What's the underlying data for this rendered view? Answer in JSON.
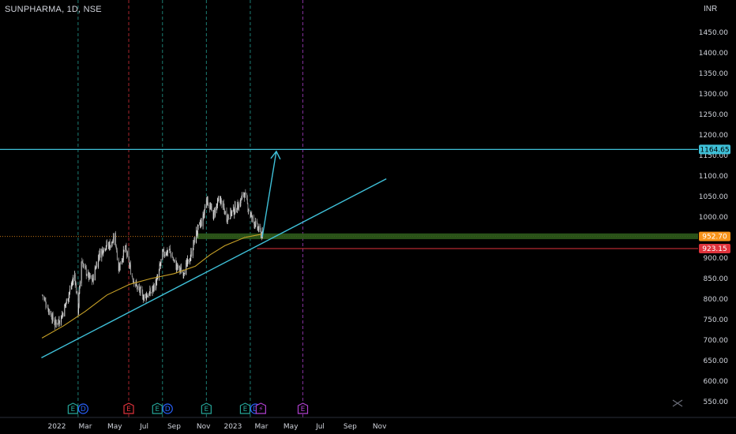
{
  "header": {
    "symbol": "SUNPHARMA, 1D, NSE",
    "currency": "INR"
  },
  "colors": {
    "background": "#000000",
    "up_candle": "#d9d9d9",
    "down_candle": "#9a9a9a",
    "moving_average": "#c9a227",
    "trendline": "#3fc1d9",
    "target_line": "#3fc1d9",
    "support_zone": "#2d5a1b",
    "stop_line": "#e0333c",
    "price_tag_current": "#f7931a",
    "price_tag_stop": "#e0333c",
    "price_tag_target": "#3fc1d9",
    "event_earnings": "#26a69a",
    "event_dividend": "#2962ff",
    "event_earnings_red": "#e0333c",
    "event_future": "#b040d0",
    "dotted_ref": "#f7931a"
  },
  "chart_data": {
    "type": "candlestick",
    "title": "SUNPHARMA, 1D, NSE",
    "ylabel": "INR",
    "ylim": [
      535,
      1475
    ],
    "y_ticks": [
      "1450.00",
      "1400.00",
      "1350.00",
      "1300.00",
      "1250.00",
      "1200.00",
      "1150.00",
      "1100.00",
      "1050.00",
      "1000.00",
      "950.00",
      "900.00",
      "850.00",
      "800.00",
      "750.00",
      "700.00",
      "650.00",
      "600.00",
      "550.00"
    ],
    "x_ticks": [
      "2022",
      "Mar",
      "May",
      "Jul",
      "Sep",
      "Nov",
      "2023",
      "Mar",
      "May",
      "Jul",
      "Sep",
      "Nov"
    ],
    "price_path": [
      [
        "2021-12-02",
        810
      ],
      [
        "2021-12-15",
        775
      ],
      [
        "2021-12-28",
        740
      ],
      [
        "2022-01-10",
        755
      ],
      [
        "2022-01-24",
        805
      ],
      [
        "2022-02-07",
        860
      ],
      [
        "2022-02-14",
        770
      ],
      [
        "2022-02-21",
        895
      ],
      [
        "2022-03-07",
        855
      ],
      [
        "2022-03-16",
        845
      ],
      [
        "2022-03-28",
        905
      ],
      [
        "2022-04-11",
        930
      ],
      [
        "2022-04-25",
        935
      ],
      [
        "2022-05-02",
        950
      ],
      [
        "2022-05-09",
        875
      ],
      [
        "2022-05-23",
        925
      ],
      [
        "2022-06-06",
        855
      ],
      [
        "2022-06-16",
        830
      ],
      [
        "2022-06-30",
        805
      ],
      [
        "2022-07-14",
        815
      ],
      [
        "2022-07-28",
        845
      ],
      [
        "2022-08-08",
        910
      ],
      [
        "2022-08-22",
        920
      ],
      [
        "2022-09-05",
        880
      ],
      [
        "2022-09-19",
        865
      ],
      [
        "2022-10-03",
        895
      ],
      [
        "2022-10-17",
        960
      ],
      [
        "2022-10-31",
        995
      ],
      [
        "2022-11-07",
        1045
      ],
      [
        "2022-11-21",
        1005
      ],
      [
        "2022-12-05",
        1045
      ],
      [
        "2022-12-19",
        1000
      ],
      [
        "2023-01-02",
        1015
      ],
      [
        "2023-01-16",
        1035
      ],
      [
        "2023-01-24",
        1060
      ],
      [
        "2023-02-06",
        1005
      ],
      [
        "2023-02-20",
        975
      ],
      [
        "2023-03-03",
        955
      ]
    ],
    "moving_average_path": [
      [
        "2021-12-01",
        705
      ],
      [
        "2022-01-15",
        735
      ],
      [
        "2022-03-01",
        770
      ],
      [
        "2022-04-15",
        810
      ],
      [
        "2022-06-01",
        836
      ],
      [
        "2022-07-15",
        850
      ],
      [
        "2022-09-01",
        862
      ],
      [
        "2022-10-15",
        880
      ],
      [
        "2022-11-15",
        908
      ],
      [
        "2022-12-15",
        930
      ],
      [
        "2023-01-25",
        950
      ],
      [
        "2023-03-01",
        958
      ]
    ],
    "trendline": {
      "from": [
        "2021-11-30",
        657
      ],
      "to": [
        "2023-11-15",
        1093
      ]
    },
    "projection_arrow": {
      "from": [
        "2023-03-03",
        952
      ],
      "to": [
        "2023-04-01",
        1160
      ]
    },
    "levels": {
      "target": {
        "value": 1164.65,
        "label": "1164.65"
      },
      "current": {
        "value": 952.7,
        "label": "952.70"
      },
      "stop": {
        "value": 923.15,
        "label": "923.15"
      }
    },
    "event_lines": [
      {
        "date": "2022-02-14",
        "color": "#26a69a"
      },
      {
        "date": "2022-05-30",
        "color": "#e0333c"
      },
      {
        "date": "2022-08-08",
        "color": "#26a69a"
      },
      {
        "date": "2022-11-07",
        "color": "#26a69a"
      },
      {
        "date": "2023-02-06",
        "color": "#26a69a"
      },
      {
        "date": "2023-05-26",
        "color": "#b040d0"
      }
    ],
    "events": [
      {
        "date": "2022-02-14",
        "badges": [
          "E",
          "D"
        ]
      },
      {
        "date": "2022-05-30",
        "badges": [
          "E"
        ]
      },
      {
        "date": "2022-08-08",
        "badges": [
          "E",
          "D"
        ]
      },
      {
        "date": "2022-11-07",
        "badges": [
          "E"
        ]
      },
      {
        "date": "2023-02-06",
        "badges": [
          "E",
          "D"
        ]
      },
      {
        "date": "2023-02-28",
        "badges": [
          "S"
        ]
      },
      {
        "date": "2023-05-26",
        "badges": [
          "E"
        ]
      }
    ]
  }
}
